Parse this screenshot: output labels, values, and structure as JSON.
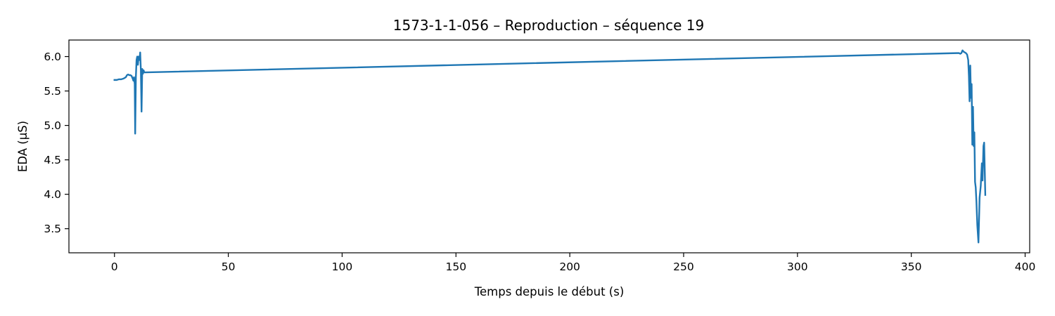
{
  "chart_data": {
    "type": "line",
    "title": "1573-1-1-056 – Reproduction – séquence 19",
    "xlabel": "Temps depuis le début (s)",
    "ylabel": "EDA (µS)",
    "xlim": [
      -20,
      402
    ],
    "ylim": [
      3.15,
      6.24
    ],
    "xticks": [
      0,
      50,
      100,
      150,
      200,
      250,
      300,
      350,
      400
    ],
    "xtick_labels": [
      "0",
      "50",
      "100",
      "150",
      "200",
      "250",
      "300",
      "350",
      "400"
    ],
    "yticks": [
      3.5,
      4.0,
      4.5,
      5.0,
      5.5,
      6.0
    ],
    "ytick_labels": [
      "3.5",
      "4.0",
      "4.5",
      "5.0",
      "5.5",
      "6.0"
    ],
    "grid": false,
    "series_color": "#1f77b4",
    "series": [
      {
        "x": [
          0,
          1,
          2,
          3,
          4,
          5,
          5.5,
          6,
          6.5,
          7,
          7.5,
          8,
          8.3,
          8.6,
          8.9,
          9.1,
          9.4,
          9.7,
          10.0,
          10.3,
          10.6,
          11.0,
          11.3,
          11.6,
          11.9,
          12.2,
          12.5,
          12.8,
          13.1,
          13.5,
          370,
          371,
          371.5,
          372,
          372.5,
          373,
          373.5,
          374,
          374.5,
          375,
          375.3,
          375.6,
          375.9,
          376.2,
          376.5,
          376.8,
          377.1,
          377.4,
          377.7,
          378,
          378.3,
          378.6,
          379,
          379.5,
          380,
          380.5,
          381,
          381.3,
          381.7,
          382,
          382.3,
          382.5
        ],
        "y": [
          5.66,
          5.66,
          5.67,
          5.67,
          5.68,
          5.7,
          5.73,
          5.74,
          5.73,
          5.73,
          5.72,
          5.68,
          5.65,
          5.7,
          5.6,
          4.88,
          5.7,
          5.95,
          6.0,
          5.88,
          6.0,
          5.95,
          6.06,
          5.8,
          5.2,
          5.82,
          5.75,
          5.8,
          5.77,
          5.77,
          6.05,
          6.05,
          6.04,
          6.05,
          6.09,
          6.07,
          6.06,
          6.05,
          6.03,
          5.95,
          5.72,
          5.35,
          5.87,
          5.4,
          5.6,
          4.72,
          5.27,
          4.7,
          4.9,
          4.18,
          4.1,
          3.9,
          3.55,
          3.3,
          3.95,
          4.12,
          4.45,
          4.2,
          4.7,
          4.75,
          4.3,
          3.99
        ]
      }
    ]
  }
}
